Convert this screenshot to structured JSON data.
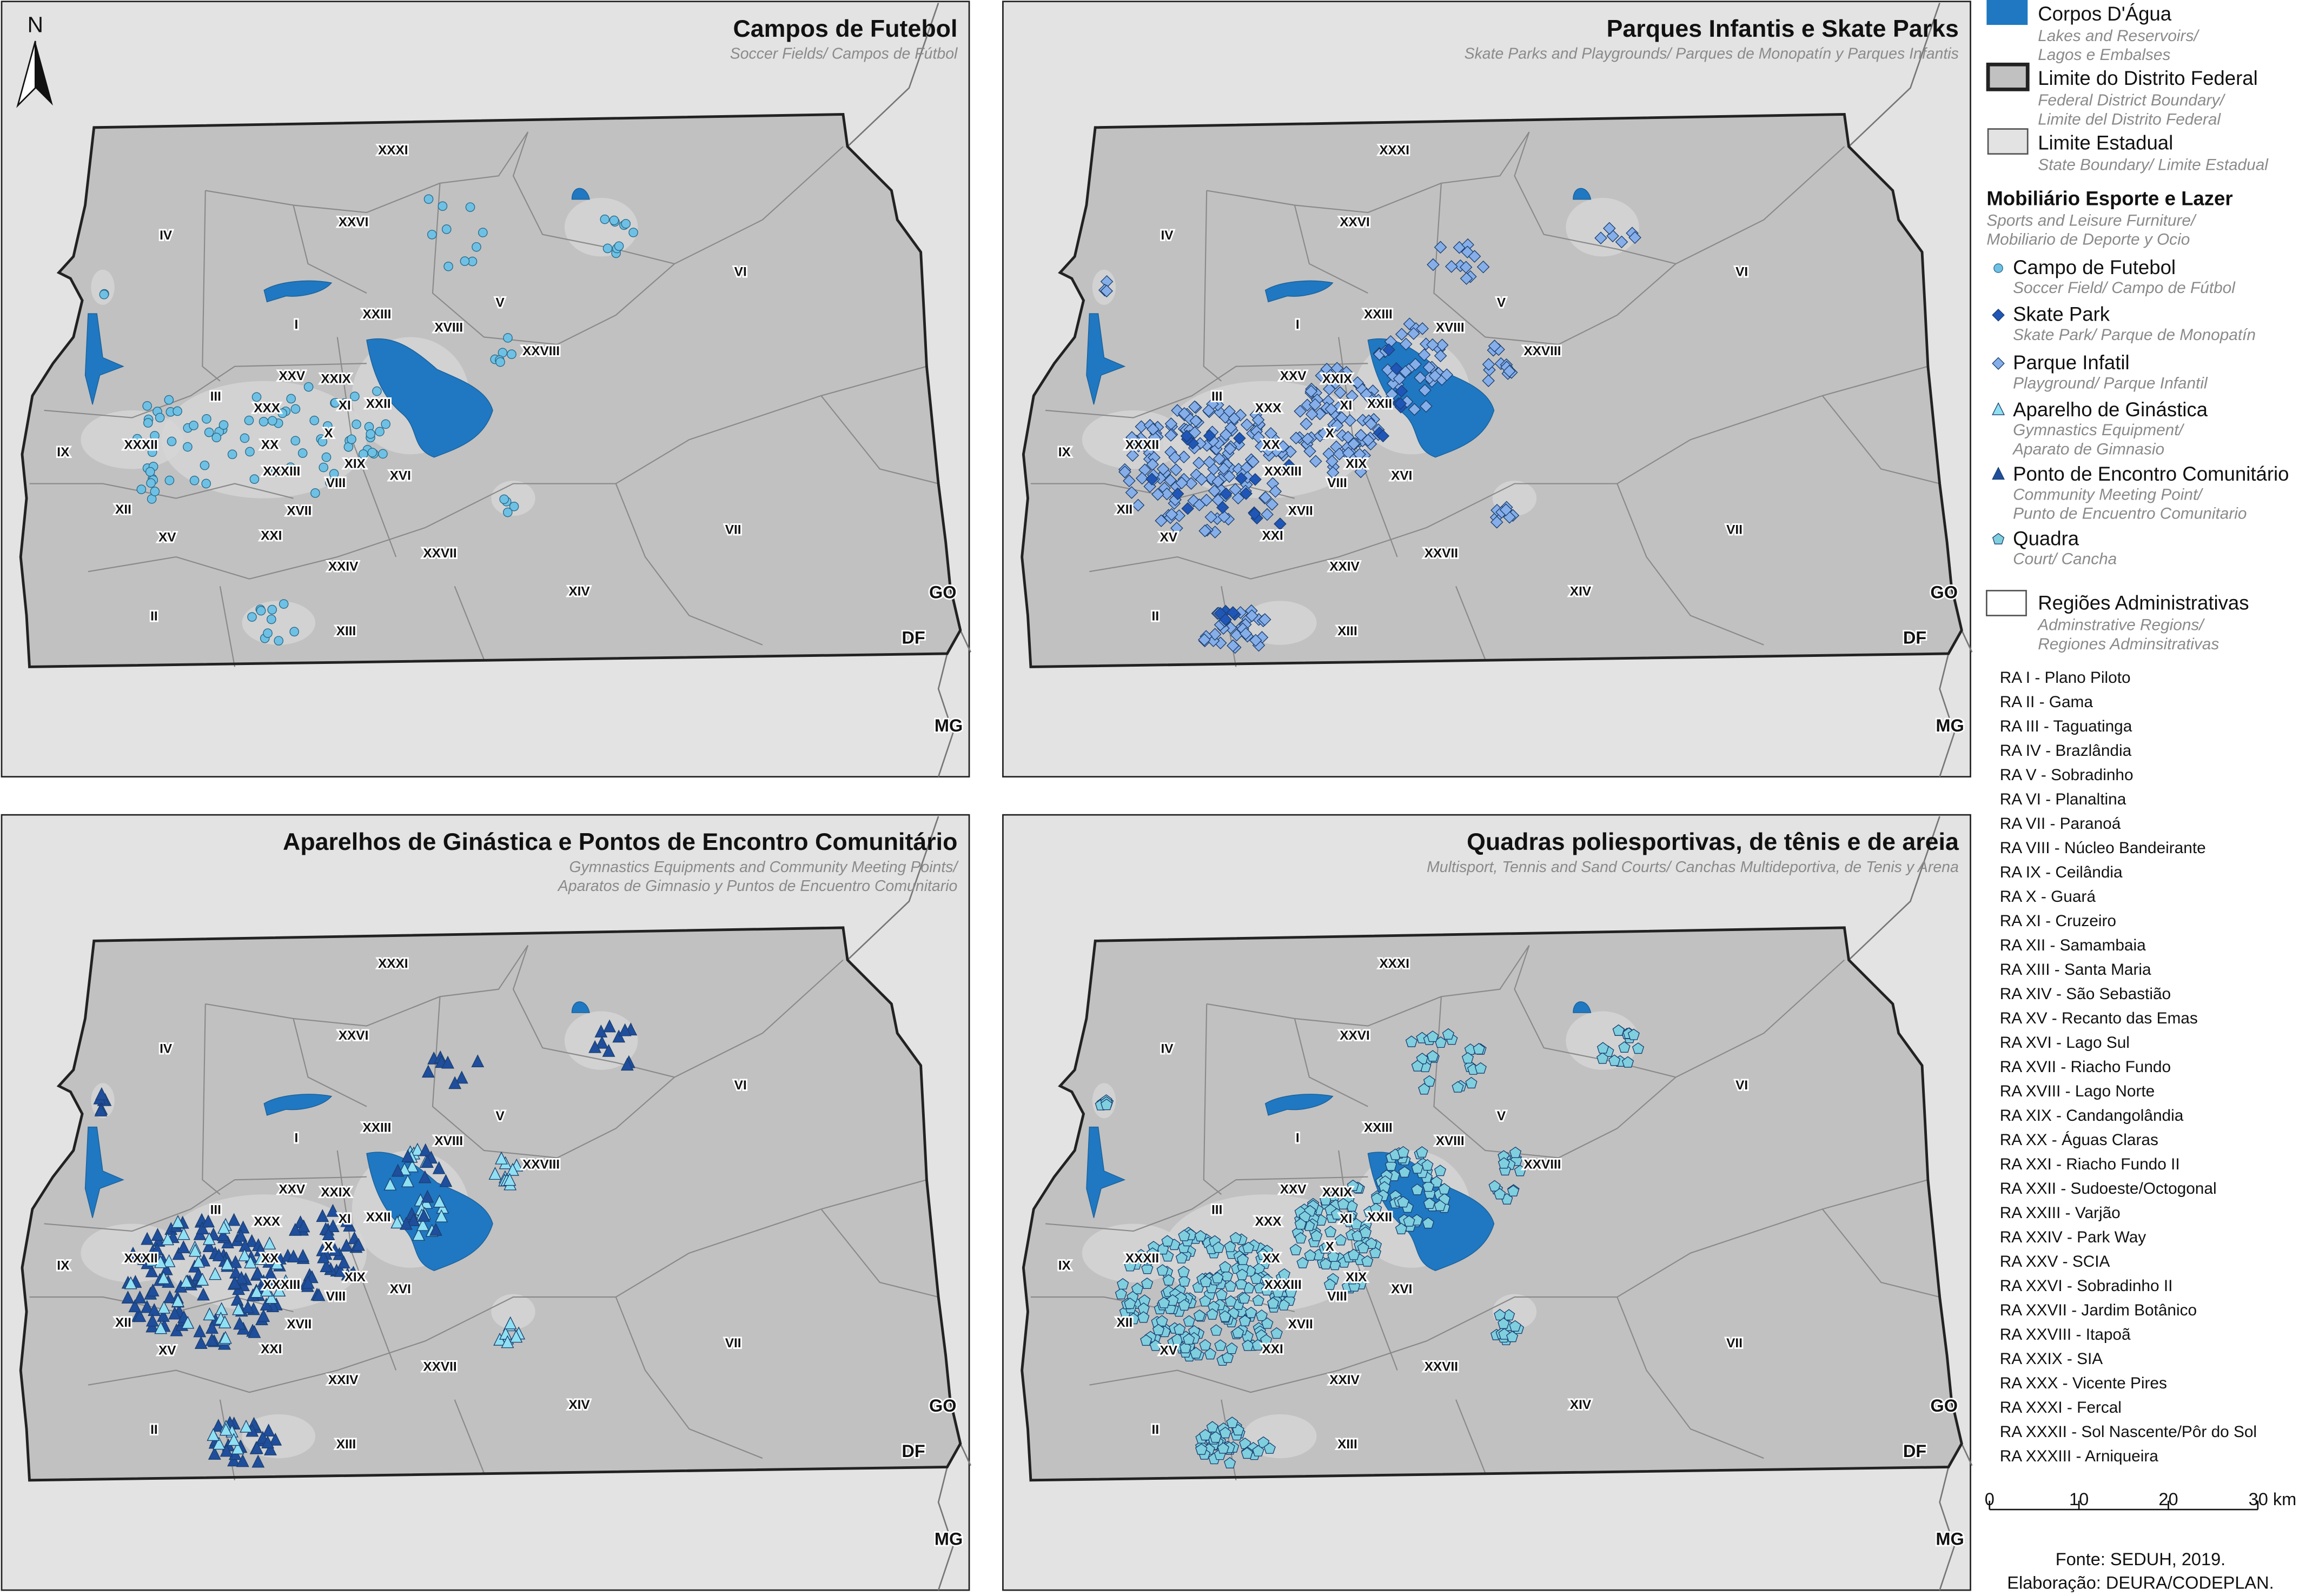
{
  "north_arrow": "N",
  "panels": [
    {
      "title": "Campos de Futebol",
      "subtitle": [
        "Soccer Fields/ Campos de Fútbol"
      ]
    },
    {
      "title": "Parques Infantis e Skate Parks",
      "subtitle": [
        "Skate Parks and Playgrounds/ Parques de Monopatín y Parques Infantis"
      ]
    },
    {
      "title": "Aparelhos de Ginástica e Pontos de Encontro Comunitário",
      "subtitle": [
        "Gymnastics Equipments and Community Meeting Points/",
        "Aparatos de Gimnasio y Puntos de Encuentro Comunitario"
      ]
    },
    {
      "title": "Quadras poliesportivas, de tênis e de areia",
      "subtitle": [
        "Multisport, Tennis and Sand Courts/ Canchas Multideportiva, de Tenis y Arena"
      ]
    }
  ],
  "map_labels": [
    "XXXI",
    "XXVI",
    "V",
    "IV",
    "VI",
    "I",
    "XXIII",
    "XVIII",
    "XXVIII",
    "III",
    "XXV",
    "XXIX",
    "XXX",
    "XI",
    "XXII",
    "X",
    "XX",
    "XXXII",
    "IX",
    "XIX",
    "XXXIII",
    "XVI",
    "VIII",
    "XII",
    "XVII",
    "XV",
    "XXI",
    "XXIV",
    "XXVII",
    "VII",
    "XIV",
    "II",
    "XIII"
  ],
  "state_labels": [
    "GO",
    "DF",
    "MG"
  ],
  "legend": {
    "items": [
      {
        "label": "Corpos D'Água",
        "sublabel": [
          "Lakes and Reservoirs/",
          "Lagos e Embalses"
        ]
      },
      {
        "label": "Limite do Distrito Federal",
        "sublabel": [
          "Federal District Boundary/",
          "Limite del Distrito Federal"
        ]
      },
      {
        "label": "Limite Estadual",
        "sublabel": [
          "State Boundary/ Limite Estadual"
        ]
      }
    ],
    "section": {
      "label": "Mobiliário Esporte e Lazer",
      "sublabel": [
        "Sports and Leisure Furniture/",
        "Mobiliario de Deporte y Ocio"
      ]
    },
    "symbols": [
      {
        "label": "Campo de Futebol",
        "sublabel": [
          "Soccer Field/ Campo de Fútbol"
        ]
      },
      {
        "label": "Skate Park",
        "sublabel": [
          "Skate Park/ Parque de Monopatín"
        ]
      },
      {
        "label": "Parque Infatil",
        "sublabel": [
          "Playground/ Parque Infantil"
        ]
      },
      {
        "label": "Aparelho de Ginástica",
        "sublabel": [
          "Gymnastics Equipment/",
          "Aparato de Gimnasio"
        ]
      },
      {
        "label": "Ponto de Encontro Comunitário",
        "sublabel": [
          "Community Meeting Point/",
          "Punto de Encuentro Comunitario"
        ]
      },
      {
        "label": "Quadra",
        "sublabel": [
          "Court/ Cancha"
        ]
      }
    ],
    "regions": {
      "label": "Regiões Administrativas",
      "sublabel": [
        "Adminstrative Regions/",
        "Regiones Adminsitrativas"
      ]
    }
  },
  "ra_list": [
    "RA I - Plano Piloto",
    "RA II - Gama",
    "RA III - Taguatinga",
    "RA IV - Brazlândia",
    "RA V - Sobradinho",
    "RA VI - Planaltina",
    "RA VII - Paranoá",
    "RA VIII - Núcleo Bandeirante",
    "RA IX - Ceilândia",
    "RA X - Guará",
    "RA XI - Cruzeiro",
    "RA XII - Samambaia",
    "RA XIII - Santa Maria",
    "RA XIV - São Sebastião",
    "RA XV - Recanto das Emas",
    "RA XVI - Lago Sul",
    "RA XVII - Riacho Fundo",
    "RA XVIII - Lago Norte",
    "RA XIX - Candangolândia",
    "RA XX - Águas Claras",
    "RA XXI - Riacho Fundo II",
    "RA XXII - Sudoeste/Octogonal",
    "RA XXIII - Varjão",
    "RA XXIV - Park Way",
    "RA XXV - SCIA",
    "RA XXVI - Sobradinho II",
    "RA XXVII - Jardim Botânico",
    "RA XXVIII - Itapoã",
    "RA XXIX - SIA",
    "RA XXX - Vicente Pires",
    "RA XXXI - Fercal",
    "RA XXXII - Sol Nascente/Pôr do Sol",
    "RA XXXIII - Arniqueira"
  ],
  "scale": [
    "0",
    "10",
    "20",
    "30 km"
  ],
  "source": [
    "Fonte: SEDUH, 2019.",
    "Elaboração: DEURA/CODEPLAN."
  ]
}
